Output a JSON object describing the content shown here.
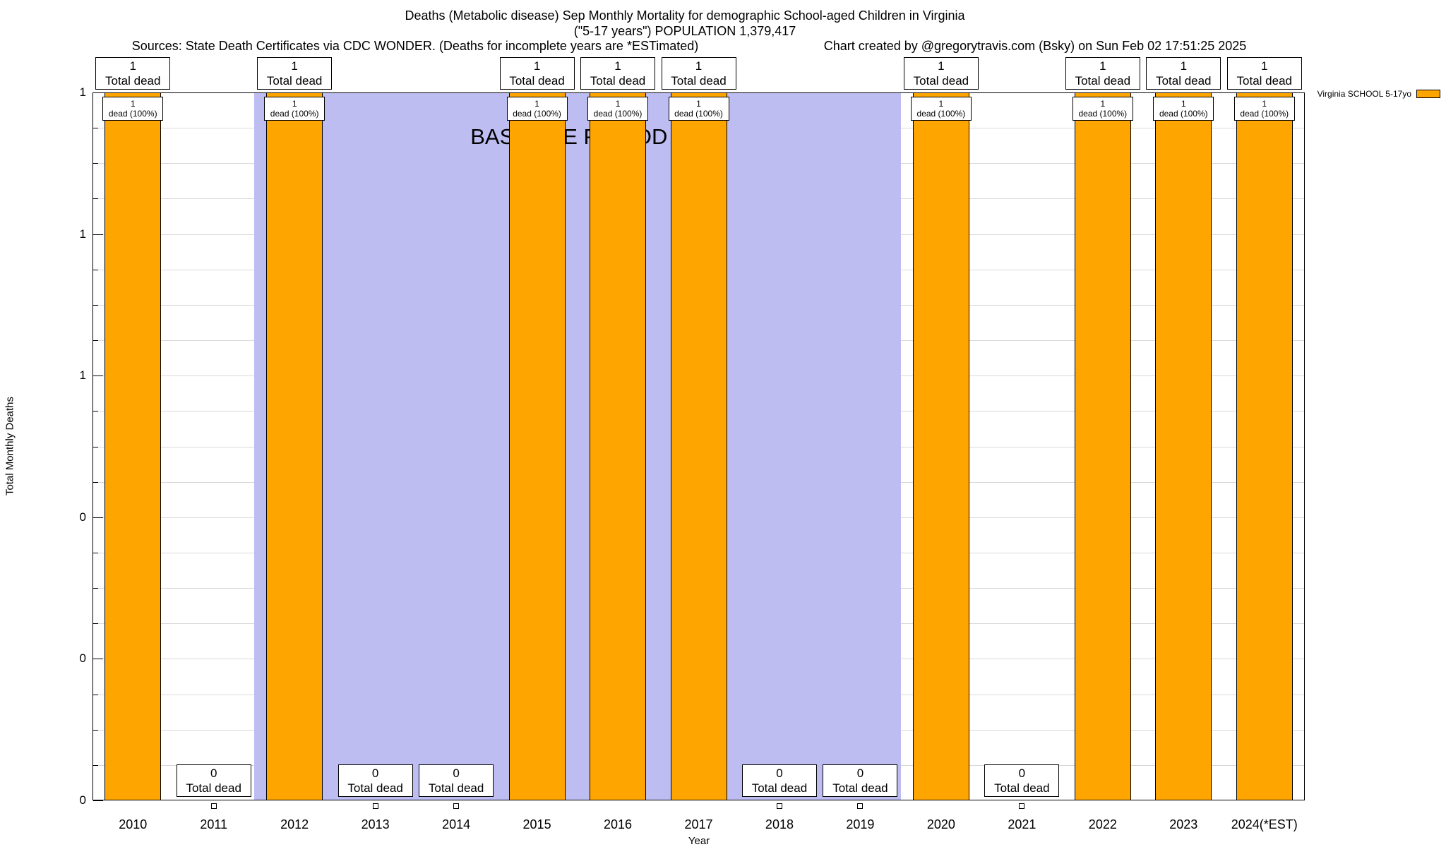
{
  "header": {
    "title_line1": "Deaths (Metabolic disease) Sep Monthly Mortality for demographic School-aged Children in Virginia",
    "title_line2": "(\"5-17 years\") POPULATION 1,379,417",
    "sources": "Sources: State Death Certificates via CDC WONDER. (Deaths for incomplete years are *ESTimated)",
    "credit": "Chart created by @gregorytravis.com (Bsky) on Sun Feb 02 17:51:25 2025"
  },
  "axes": {
    "x_title": "Year",
    "y_title": "Total Monthly Deaths"
  },
  "legend": {
    "series_label": "Virginia SCHOOL 5-17yo",
    "swatch_color": "#FFA500"
  },
  "annotations": {
    "total_dead_label": "Total dead",
    "dead_pct_label": "dead (100%)"
  },
  "chart_data": {
    "type": "bar",
    "title": "Deaths (Metabolic disease) Sep Monthly Mortality for demographic School-aged Children in Virginia (\"5-17 years\") POPULATION 1,379,417",
    "xlabel": "Year",
    "ylabel": "Total Monthly Deaths",
    "ylim": [
      0,
      1
    ],
    "grid": true,
    "legend_position": "top-right",
    "categories": [
      "2010",
      "2011",
      "2012",
      "2013",
      "2014",
      "2015",
      "2016",
      "2017",
      "2018",
      "2019",
      "2020",
      "2021",
      "2022",
      "2023",
      "2024(*EST)"
    ],
    "series": [
      {
        "name": "Virginia SCHOOL 5-17yo",
        "values": [
          1,
          0,
          1,
          0,
          0,
          1,
          1,
          1,
          0,
          0,
          1,
          0,
          1,
          1,
          1
        ]
      }
    ],
    "bar_color": "#FFA500",
    "yticks": [
      {
        "value": 0,
        "label": "0"
      },
      {
        "value": 0.2,
        "label": "0"
      },
      {
        "value": 0.4,
        "label": "0"
      },
      {
        "value": 0.6,
        "label": "1"
      },
      {
        "value": 0.8,
        "label": "1"
      },
      {
        "value": 1,
        "label": "1"
      }
    ],
    "baseline_region": {
      "label": "BASELINE PERIOD",
      "start_category": "2012",
      "end_category": "2019",
      "start_index": 2,
      "end_index": 10,
      "color": "#bdbdf2"
    }
  }
}
